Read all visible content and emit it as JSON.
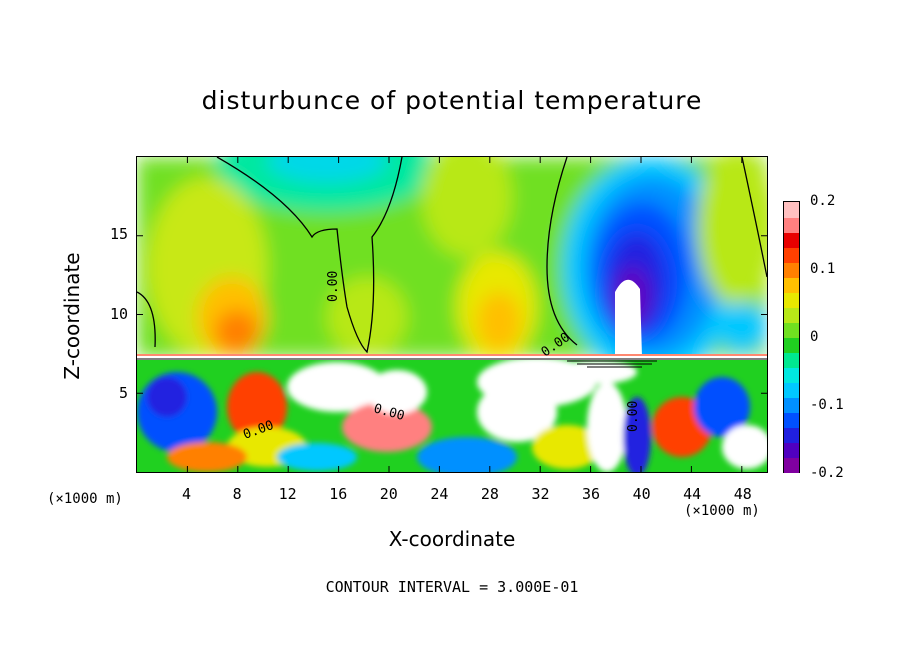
{
  "chart_data": {
    "type": "heatmap",
    "title": "disturbunce of potential temperature",
    "xlabel": "X-coordinate",
    "ylabel": "Z-coordinate",
    "x_unit": "(×1000 m)",
    "xlim": [
      0,
      50
    ],
    "ylim": [
      0,
      20
    ],
    "x_ticks": [
      4,
      8,
      12,
      16,
      20,
      24,
      28,
      32,
      36,
      40,
      44,
      48
    ],
    "y_ticks": [
      5,
      10,
      15
    ],
    "colorbar": {
      "range": [
        -0.2,
        0.2
      ],
      "tick_labels": [
        "0.2",
        "0.1",
        "0",
        "-0.1",
        "-0.2"
      ],
      "tick_values": [
        0.2,
        0.1,
        0,
        -0.1,
        -0.2
      ],
      "colors": [
        "#8000a0",
        "#5000c0",
        "#2020e0",
        "#0050ff",
        "#0090ff",
        "#00c8ff",
        "#00e8e0",
        "#00e890",
        "#20d020",
        "#70e020",
        "#b8e818",
        "#e8e800",
        "#ffc000",
        "#ff8000",
        "#ff4000",
        "#e80000",
        "#ff8080",
        "#ffc0c0"
      ]
    },
    "contour_labels": [
      "0.00",
      "0.00",
      "0.00",
      "0.00",
      "0.00"
    ],
    "footer": "CONTOUR INTERVAL = 3.000E-01"
  }
}
